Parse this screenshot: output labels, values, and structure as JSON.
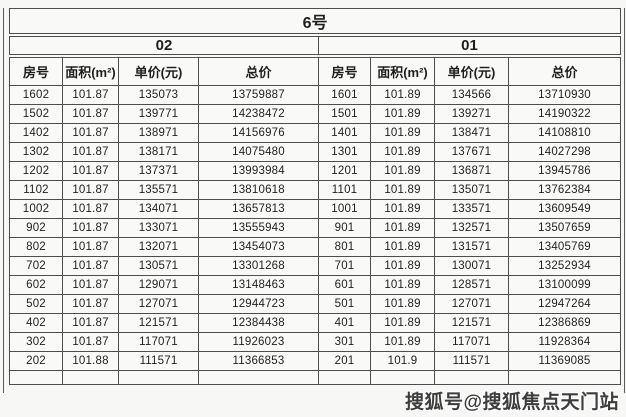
{
  "table": {
    "building_label": "6号",
    "sections": [
      {
        "unit": "02",
        "headers": [
          "房号",
          "面积(m²)",
          "单价(元)",
          "总价"
        ]
      },
      {
        "unit": "01",
        "headers": [
          "房号",
          "面积(m²)",
          "单价(元)",
          "总价"
        ]
      }
    ],
    "rows": [
      {
        "l": [
          "1602",
          "101.87",
          "135073",
          "13759887"
        ],
        "r": [
          "1601",
          "101.89",
          "134566",
          "13710930"
        ]
      },
      {
        "l": [
          "1502",
          "101.87",
          "139771",
          "14238472"
        ],
        "r": [
          "1501",
          "101.89",
          "139271",
          "14190322"
        ]
      },
      {
        "l": [
          "1402",
          "101.87",
          "138971",
          "14156976"
        ],
        "r": [
          "1401",
          "101.89",
          "138471",
          "14108810"
        ]
      },
      {
        "l": [
          "1302",
          "101.87",
          "138171",
          "14075480"
        ],
        "r": [
          "1301",
          "101.89",
          "137671",
          "14027298"
        ]
      },
      {
        "l": [
          "1202",
          "101.87",
          "137371",
          "13993984"
        ],
        "r": [
          "1201",
          "101.89",
          "136871",
          "13945786"
        ]
      },
      {
        "l": [
          "1102",
          "101.87",
          "135571",
          "13810618"
        ],
        "r": [
          "1101",
          "101.89",
          "135071",
          "13762384"
        ]
      },
      {
        "l": [
          "1002",
          "101.87",
          "134071",
          "13657813"
        ],
        "r": [
          "1001",
          "101.89",
          "133571",
          "13609549"
        ]
      },
      {
        "l": [
          "902",
          "101.87",
          "133071",
          "13555943"
        ],
        "r": [
          "901",
          "101.89",
          "132571",
          "13507659"
        ]
      },
      {
        "l": [
          "802",
          "101.87",
          "132071",
          "13454073"
        ],
        "r": [
          "801",
          "101.89",
          "131571",
          "13405769"
        ]
      },
      {
        "l": [
          "702",
          "101.87",
          "130571",
          "13301268"
        ],
        "r": [
          "701",
          "101.89",
          "130071",
          "13252934"
        ]
      },
      {
        "l": [
          "602",
          "101.87",
          "129071",
          "13148463"
        ],
        "r": [
          "601",
          "101.89",
          "128571",
          "13100099"
        ]
      },
      {
        "l": [
          "502",
          "101.87",
          "127071",
          "12944723"
        ],
        "r": [
          "501",
          "101.89",
          "127071",
          "12947264"
        ]
      },
      {
        "l": [
          "402",
          "101.87",
          "121571",
          "12384438"
        ],
        "r": [
          "401",
          "101.89",
          "121571",
          "12386869"
        ]
      },
      {
        "l": [
          "302",
          "101.87",
          "117071",
          "11926023"
        ],
        "r": [
          "301",
          "101.89",
          "117071",
          "11928364"
        ]
      },
      {
        "l": [
          "202",
          "101.88",
          "111571",
          "11366853"
        ],
        "r": [
          "201",
          "101.9",
          "111571",
          "11369085"
        ]
      },
      {
        "l": [
          "",
          "",
          "",
          ""
        ],
        "r": [
          "",
          "",
          "",
          ""
        ]
      }
    ]
  },
  "watermark": {
    "text": "搜狐号@搜狐焦点天门站"
  },
  "colors": {
    "background": "#f7f7f5",
    "border": "#4e4e4e",
    "text": "#1f1f1f",
    "watermark_text": "#3d3d3d",
    "watermark_outline": "#ffffff"
  }
}
